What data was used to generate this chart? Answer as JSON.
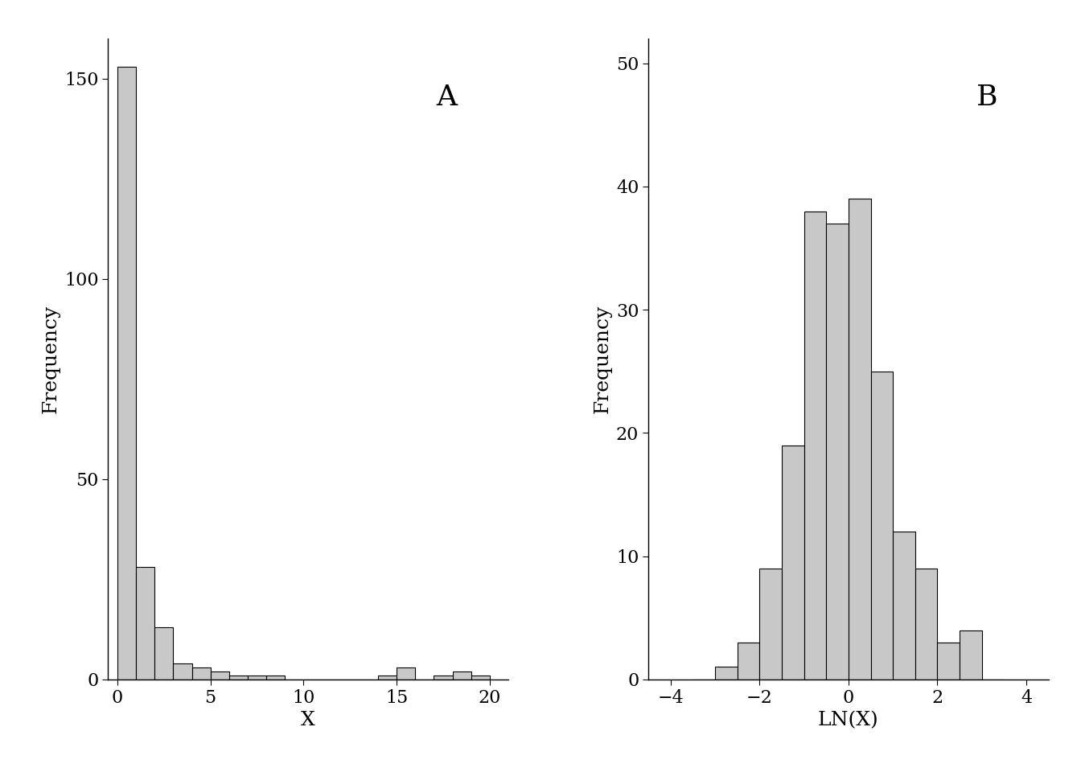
{
  "panel_a": {
    "bin_edges": [
      0,
      1,
      2,
      3,
      4,
      5,
      6,
      7,
      8,
      9,
      10,
      11,
      12,
      13,
      14,
      15,
      16,
      17,
      18,
      19,
      20
    ],
    "frequencies": [
      153,
      28,
      13,
      4,
      3,
      2,
      1,
      1,
      1,
      0,
      0,
      0,
      0,
      0,
      1,
      3,
      0,
      1,
      2,
      1
    ],
    "xlabel": "X",
    "ylabel": "Frequency",
    "label": "A",
    "xlim": [
      -0.5,
      21
    ],
    "ylim": [
      0,
      160
    ],
    "xticks": [
      0,
      5,
      10,
      15,
      20
    ],
    "yticks": [
      0,
      50,
      100,
      150
    ]
  },
  "panel_b": {
    "bin_edges": [
      -3.5,
      -3.0,
      -2.5,
      -2.0,
      -1.5,
      -1.0,
      -0.5,
      0.0,
      0.5,
      1.0,
      1.5,
      2.0,
      2.5,
      3.0,
      3.5
    ],
    "frequencies": [
      0,
      1,
      3,
      9,
      19,
      38,
      37,
      39,
      25,
      12,
      9,
      3,
      4,
      0
    ],
    "xlabel": "LN(X)",
    "ylabel": "Frequency",
    "label": "B",
    "xlim": [
      -4.5,
      4.5
    ],
    "ylim": [
      0,
      52
    ],
    "xticks": [
      -4,
      -2,
      0,
      2,
      4
    ],
    "yticks": [
      0,
      10,
      20,
      30,
      40,
      50
    ]
  },
  "bar_color": "#c8c8c8",
  "bar_edgecolor": "#000000",
  "background_color": "#ffffff",
  "label_fontsize": 26,
  "axis_label_fontsize": 18,
  "tick_fontsize": 16
}
